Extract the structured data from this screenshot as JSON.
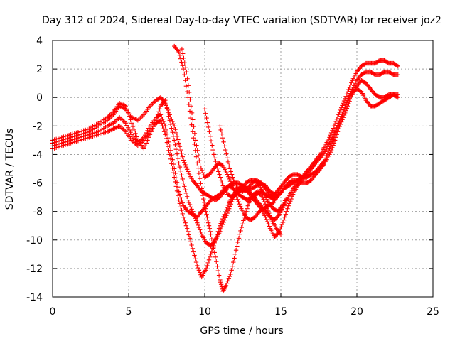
{
  "chart_data": {
    "type": "scatter",
    "title": "Day 312 of 2024, Sidereal Day-to-day VTEC variation (SDTVAR) for receiver joz2",
    "xlabel": "GPS time / hours",
    "ylabel": "SDTVAR / TECUs",
    "xlim": [
      0,
      25
    ],
    "ylim": [
      -14,
      4
    ],
    "x_ticks": [
      0,
      5,
      10,
      15,
      20,
      25
    ],
    "y_ticks": [
      -14,
      -12,
      -10,
      -8,
      -6,
      -4,
      -2,
      0,
      2,
      4
    ],
    "x_tick_labels": [
      "0",
      "5",
      "10",
      "15",
      "20",
      "25"
    ],
    "y_tick_labels": [
      "-14",
      "-12",
      "-10",
      "-8",
      "-6",
      "-4",
      "-2",
      "0",
      "2",
      "4"
    ],
    "grid": true,
    "marker": "+",
    "color": "#ff0000",
    "series": [
      {
        "x": [
          0.0,
          0.6,
          1.2,
          1.8,
          2.4,
          3.0,
          3.6,
          4.0,
          4.4,
          4.8,
          5.2,
          5.6,
          6.0,
          6.4,
          6.8,
          7.1,
          7.4,
          7.7,
          8.0,
          8.3,
          8.6,
          8.9,
          9.2,
          9.5,
          9.8,
          10.1,
          10.4,
          10.7,
          11.0,
          11.3,
          11.6,
          11.9,
          12.2,
          12.5,
          12.8,
          13.1,
          13.4,
          13.7,
          14.0,
          14.3,
          14.6,
          14.9,
          15.2,
          15.5,
          15.8,
          16.1,
          16.4,
          16.7,
          17.0,
          17.3,
          17.6,
          17.9,
          18.2,
          18.5,
          18.8,
          19.1,
          19.4,
          19.7,
          20.0,
          20.3,
          20.6,
          20.9,
          21.2,
          21.5,
          21.8,
          22.1,
          22.4,
          22.7
        ],
        "y": [
          -3.2,
          -3.0,
          -2.8,
          -2.6,
          -2.4,
          -2.0,
          -1.6,
          -1.2,
          -0.6,
          -0.8,
          -1.4,
          -1.6,
          -1.2,
          -0.6,
          -0.2,
          0.0,
          -0.4,
          -1.2,
          -2.0,
          -3.2,
          -4.4,
          -5.2,
          -5.8,
          -6.2,
          -6.6,
          -6.8,
          -7.0,
          -7.2,
          -7.0,
          -6.6,
          -6.2,
          -6.0,
          -6.0,
          -6.2,
          -6.4,
          -6.4,
          -6.2,
          -6.0,
          -6.2,
          -6.6,
          -6.8,
          -6.4,
          -6.0,
          -5.6,
          -5.4,
          -5.4,
          -5.6,
          -5.6,
          -5.4,
          -5.2,
          -4.8,
          -4.4,
          -3.6,
          -2.8,
          -1.8,
          -1.0,
          -0.2,
          0.6,
          1.2,
          1.6,
          1.8,
          1.8,
          1.6,
          1.6,
          1.8,
          1.8,
          1.6,
          1.6
        ]
      },
      {
        "x": [
          0.0,
          0.6,
          1.2,
          1.8,
          2.4,
          3.0,
          3.6,
          4.0,
          4.4,
          4.8,
          5.2,
          5.6,
          6.0,
          6.4,
          6.8,
          7.1,
          7.4,
          7.7,
          8.0,
          8.3,
          8.6,
          8.9,
          9.2,
          9.5,
          9.8,
          10.1,
          10.4,
          10.7,
          11.0,
          11.3,
          11.6,
          11.9,
          12.2,
          12.5,
          12.8,
          13.1,
          13.4,
          13.7,
          14.0,
          14.3,
          14.6,
          14.9,
          15.2,
          15.5,
          15.8,
          16.1,
          16.4,
          16.7,
          17.0,
          17.3,
          17.6,
          17.9,
          18.2,
          18.5,
          18.8,
          19.1,
          19.4,
          19.7,
          20.0,
          20.3,
          20.6,
          20.9,
          21.2,
          21.5,
          21.8,
          22.1,
          22.4,
          22.7
        ],
        "y": [
          -3.4,
          -3.2,
          -3.0,
          -2.8,
          -2.6,
          -2.4,
          -2.0,
          -1.8,
          -1.4,
          -1.8,
          -2.6,
          -3.2,
          -2.8,
          -2.0,
          -1.4,
          -1.2,
          -2.0,
          -3.4,
          -5.0,
          -6.6,
          -7.6,
          -8.0,
          -8.2,
          -8.4,
          -8.0,
          -7.6,
          -7.2,
          -7.0,
          -6.8,
          -6.4,
          -6.2,
          -6.4,
          -6.8,
          -7.0,
          -7.2,
          -7.0,
          -6.8,
          -6.6,
          -6.8,
          -7.0,
          -7.2,
          -6.8,
          -6.4,
          -6.0,
          -5.8,
          -5.8,
          -6.0,
          -6.0,
          -5.8,
          -5.4,
          -5.0,
          -4.6,
          -4.0,
          -3.2,
          -2.2,
          -1.4,
          -0.6,
          0.2,
          0.8,
          1.2,
          1.0,
          0.6,
          0.2,
          0.0,
          0.0,
          0.2,
          0.2,
          0.2
        ]
      },
      {
        "x": [
          0.0,
          0.6,
          1.2,
          1.8,
          2.4,
          3.0,
          3.6,
          4.0,
          4.4,
          4.8,
          5.2,
          5.6,
          6.0,
          6.4,
          6.8,
          7.1,
          7.4,
          7.7,
          8.0,
          8.3,
          8.6,
          8.9,
          9.2,
          9.5,
          9.8,
          10.1,
          10.4,
          10.7,
          11.0,
          11.3,
          11.6,
          11.9,
          12.2,
          12.5,
          12.8,
          13.1,
          13.4,
          13.7,
          14.0,
          14.3,
          14.6,
          14.9,
          15.2,
          15.5,
          15.8,
          16.1,
          16.4,
          16.7,
          17.0,
          17.3,
          17.6,
          17.9,
          18.2,
          18.5,
          18.8,
          19.1,
          19.4,
          19.7,
          20.0,
          20.3,
          20.6,
          20.9,
          21.2,
          21.5,
          21.8,
          22.1,
          22.4,
          22.7
        ],
        "y": [
          -3.0,
          -2.8,
          -2.6,
          -2.4,
          -2.2,
          -1.8,
          -1.4,
          -1.0,
          -0.4,
          -0.6,
          -1.8,
          -3.0,
          -3.6,
          -2.6,
          -1.6,
          -0.6,
          -0.2,
          -1.6,
          -3.0,
          -4.6,
          -6.0,
          -7.2,
          -8.0,
          -8.8,
          -9.6,
          -10.2,
          -10.4,
          -10.0,
          -9.4,
          -8.6,
          -7.8,
          -7.0,
          -6.6,
          -6.4,
          -6.6,
          -7.0,
          -7.4,
          -7.8,
          -8.4,
          -9.2,
          -9.8,
          -9.4,
          -8.6,
          -7.6,
          -6.8,
          -6.2,
          -5.8,
          -5.4,
          -5.0,
          -4.6,
          -4.2,
          -3.8,
          -3.2,
          -2.6,
          -1.8,
          -1.0,
          -0.2,
          0.4,
          0.6,
          0.4,
          -0.2,
          -0.6,
          -0.6,
          -0.4,
          -0.2,
          0.0,
          0.2,
          0.0
        ]
      },
      {
        "x": [
          0.0,
          0.6,
          1.2,
          1.8,
          2.4,
          3.0,
          3.6,
          4.0,
          4.4,
          4.8,
          5.2,
          5.6,
          6.0,
          6.4,
          6.8,
          7.1,
          7.4,
          7.7,
          8.0,
          8.3,
          8.6,
          8.9,
          9.2,
          9.5,
          9.8,
          10.1,
          10.4,
          10.7,
          11.0,
          11.3,
          11.6,
          11.9,
          12.2,
          12.5,
          12.8,
          13.1,
          13.4,
          13.7,
          14.0,
          14.3,
          14.6,
          14.9,
          15.2,
          15.5,
          15.8,
          16.1,
          16.4,
          16.7,
          17.0,
          17.3,
          17.6,
          17.9,
          18.2,
          18.5,
          18.8,
          19.1,
          19.4,
          19.7,
          20.0,
          20.3,
          20.6,
          20.9,
          21.2,
          21.5,
          21.8,
          22.1,
          22.4,
          22.7
        ],
        "y": [
          -3.6,
          -3.4,
          -3.2,
          -3.0,
          -2.8,
          -2.6,
          -2.4,
          -2.2,
          -2.0,
          -2.4,
          -3.0,
          -3.4,
          -3.0,
          -2.4,
          -1.8,
          -1.6,
          -2.6,
          -4.0,
          -5.6,
          -7.2,
          -8.4,
          -9.4,
          -10.6,
          -11.8,
          -12.6,
          -12.0,
          -11.0,
          -10.0,
          -9.0,
          -8.2,
          -7.4,
          -6.8,
          -6.4,
          -6.2,
          -6.4,
          -6.8,
          -7.2,
          -7.6,
          -8.0,
          -8.4,
          -8.6,
          -8.2,
          -7.6,
          -7.0,
          -6.4,
          -6.0,
          -5.6,
          -5.2,
          -4.8,
          -4.4,
          -4.0,
          -3.4,
          -2.8,
          -2.0,
          -1.2,
          -0.4,
          0.4,
          1.2,
          1.8,
          2.2,
          2.4,
          2.4,
          2.4,
          2.6,
          2.6,
          2.4,
          2.4,
          2.2
        ]
      },
      {
        "x": [
          8.0,
          8.3,
          8.6,
          8.9,
          9.2,
          9.5,
          9.8,
          10.0,
          10.2,
          10.4,
          10.7,
          11.0,
          11.2,
          11.4,
          11.7,
          12.0,
          12.3,
          12.6,
          12.9,
          13.2,
          13.5,
          13.8,
          14.1,
          14.4,
          14.7,
          15.0
        ],
        "y": [
          3.6,
          3.2,
          2.0,
          0.0,
          -2.4,
          -4.6,
          -6.4,
          -7.6,
          -8.6,
          -9.6,
          -11.2,
          -12.8,
          -13.6,
          -13.2,
          -12.4,
          -11.0,
          -9.6,
          -8.4,
          -7.4,
          -6.8,
          -6.6,
          -7.0,
          -7.8,
          -8.6,
          -9.2,
          -9.6
        ]
      },
      {
        "x": [
          8.5,
          8.8,
          9.1,
          9.4,
          9.7,
          10.0,
          10.3,
          10.6,
          10.9,
          11.2,
          11.5,
          11.8,
          12.1,
          12.4,
          12.7,
          13.0,
          13.3,
          13.6,
          13.9,
          14.2,
          14.5
        ],
        "y": [
          3.4,
          1.8,
          -0.6,
          -3.0,
          -4.8,
          -5.6,
          -5.4,
          -5.0,
          -4.6,
          -4.8,
          -5.4,
          -6.2,
          -7.0,
          -7.8,
          -8.4,
          -8.6,
          -8.4,
          -8.0,
          -7.8,
          -7.6,
          -7.4
        ]
      },
      {
        "x": [
          10.0,
          10.3,
          10.6,
          10.9,
          11.2,
          11.5,
          11.8,
          12.1,
          12.4,
          12.7,
          13.0,
          13.3,
          13.6,
          13.9,
          14.2,
          14.5,
          14.8,
          15.1,
          15.4
        ],
        "y": [
          -0.8,
          -2.4,
          -4.0,
          -5.2,
          -6.2,
          -6.8,
          -7.0,
          -6.8,
          -6.4,
          -6.0,
          -5.8,
          -5.8,
          -6.2,
          -6.8,
          -7.4,
          -7.8,
          -8.0,
          -7.6,
          -7.0
        ]
      },
      {
        "x": [
          11.0,
          11.3,
          11.6,
          11.9,
          12.2,
          12.5,
          12.8,
          13.1,
          13.4,
          13.7,
          14.0,
          14.3,
          14.6,
          14.9,
          15.2,
          15.5,
          15.8,
          16.1,
          16.4,
          16.7
        ],
        "y": [
          -2.0,
          -3.4,
          -4.8,
          -5.8,
          -6.4,
          -6.6,
          -6.4,
          -6.0,
          -5.8,
          -6.0,
          -6.4,
          -6.8,
          -7.0,
          -6.8,
          -6.4,
          -6.2,
          -6.0,
          -5.8,
          -5.6,
          -5.4
        ]
      }
    ]
  }
}
